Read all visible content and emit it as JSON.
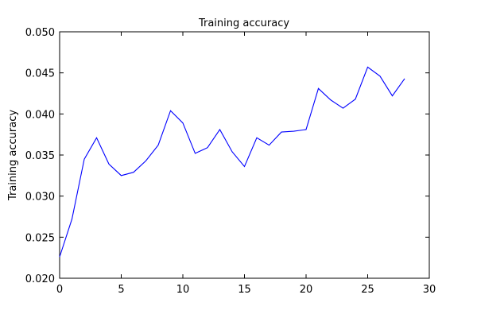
{
  "chart_data": {
    "type": "line",
    "title": "Training accuracy",
    "xlabel": "",
    "ylabel": "Training accuracy",
    "xlim": [
      0,
      30
    ],
    "ylim": [
      0.02,
      0.05
    ],
    "grid": false,
    "legend": "none",
    "x_ticks": [
      "0",
      "5",
      "10",
      "15",
      "20",
      "25",
      "30"
    ],
    "y_ticks": [
      "0.020",
      "0.025",
      "0.030",
      "0.035",
      "0.040",
      "0.045",
      "0.050"
    ],
    "series": [
      {
        "color": "#0000ff",
        "x": [
          0,
          1,
          2,
          3,
          4,
          5,
          6,
          7,
          8,
          9,
          10,
          11,
          12,
          13,
          14,
          15,
          16,
          17,
          18,
          19,
          20,
          21,
          22,
          23,
          24,
          25,
          26,
          27,
          28
        ],
        "y": [
          0.0226,
          0.0272,
          0.0345,
          0.0371,
          0.0339,
          0.0325,
          0.0329,
          0.0343,
          0.0362,
          0.0404,
          0.0389,
          0.0352,
          0.0359,
          0.0381,
          0.0354,
          0.0336,
          0.0371,
          0.0362,
          0.0378,
          0.0379,
          0.0381,
          0.0431,
          0.0417,
          0.0407,
          0.0418,
          0.0457,
          0.0446,
          0.0422,
          0.0443
        ]
      }
    ]
  }
}
